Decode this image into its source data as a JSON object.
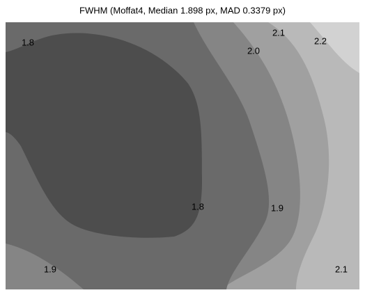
{
  "chart_data": {
    "type": "contour",
    "title": "FWHM (Moffat4, Median 1.898 px, MAD 0.3379 px)",
    "levels": [
      1.8,
      1.9,
      {
        "value": 2,
        "label": "2.0"
      },
      2.1,
      2.2
    ],
    "colors": [
      "#4d4d4d",
      "#6a6a6a",
      "#858585",
      "#a0a0a0",
      "#b9b9b9",
      "#d2d2d2"
    ]
  }
}
